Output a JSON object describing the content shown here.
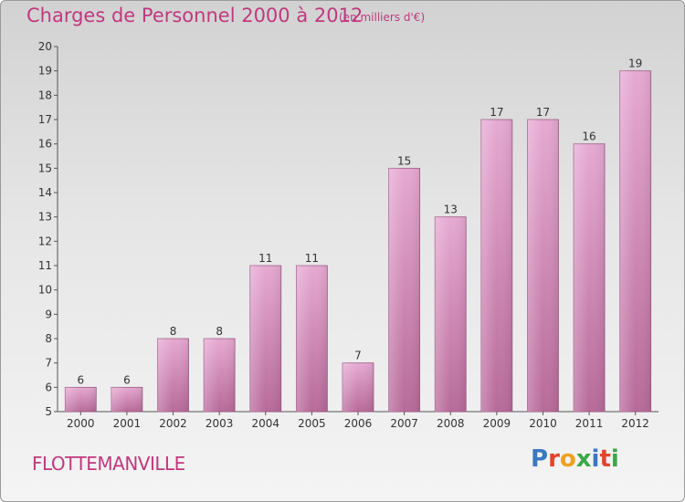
{
  "header": {
    "title": "Charges de Personnel 2000 à 2012",
    "subtitle": "(en milliers d'€)"
  },
  "footer": {
    "commune": "FLOTTEMANVILLE",
    "logo_text": "Proxiti"
  },
  "colors": {
    "title": "#c0397e",
    "bar_top": "#e6a9d2",
    "bar_bottom": "#b86a99",
    "axis": "#555555"
  },
  "chart_data": {
    "type": "bar",
    "title": "Charges de Personnel 2000 à 2012",
    "subtitle": "(en milliers d'€)",
    "categories": [
      "2000",
      "2001",
      "2002",
      "2003",
      "2004",
      "2005",
      "2006",
      "2007",
      "2008",
      "2009",
      "2010",
      "2011",
      "2012"
    ],
    "values": [
      6,
      6,
      8,
      8,
      11,
      11,
      7,
      15,
      13,
      17,
      17,
      16,
      19
    ],
    "ylim": [
      5,
      20
    ],
    "yticks": [
      5,
      6,
      7,
      8,
      9,
      10,
      11,
      12,
      13,
      14,
      15,
      16,
      17,
      18,
      19,
      20
    ],
    "grid": false,
    "data_labels": true
  }
}
